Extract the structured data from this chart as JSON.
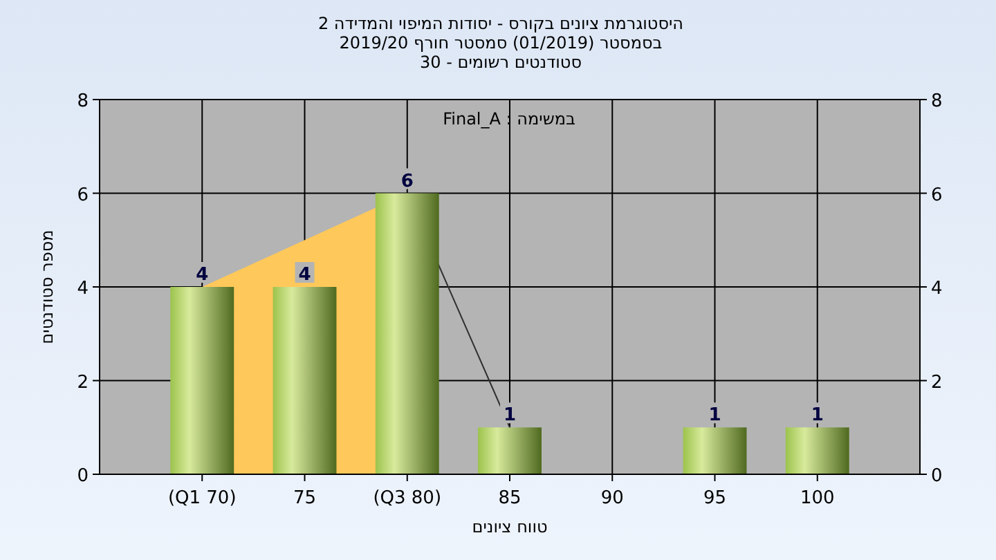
{
  "chart_data": {
    "type": "bar",
    "title": "היסטוגרמת ציונים בקורס - יסודות המיפוי והמדידה 2",
    "subtitle": "בסמסטר  (01/2019)  סמסטר חורף 2019/20\nסטודנטים רשומים - 30",
    "xlabel": "טווח ציונים",
    "ylabel": "מספר סטודנטים",
    "annotations": [
      "במשימה : Final_A"
    ],
    "categories": [
      "(Q1 70)",
      "75",
      "(Q3 80)",
      "85",
      "90",
      "95",
      "100"
    ],
    "series": [
      {
        "type": "area",
        "color": "#ffc85a",
        "values": [
          4,
          5,
          6,
          null,
          null,
          null,
          null
        ]
      },
      {
        "type": "line",
        "color": "#303030",
        "values": [
          null,
          null,
          6,
          1,
          null,
          null,
          null
        ]
      },
      {
        "color": "#9cc34c",
        "values": [
          4,
          4,
          6,
          1,
          null,
          1,
          1
        ],
        "value_labels": [
          "4",
          "4",
          "6",
          "1",
          null,
          "1",
          "1"
        ]
      }
    ],
    "ylim": [
      0,
      8
    ],
    "yticks": [
      0,
      2,
      4,
      6,
      8
    ],
    "y2lim": [
      0,
      8
    ],
    "y2ticks": [
      0,
      2,
      4,
      6,
      8
    ],
    "grid": true
  }
}
